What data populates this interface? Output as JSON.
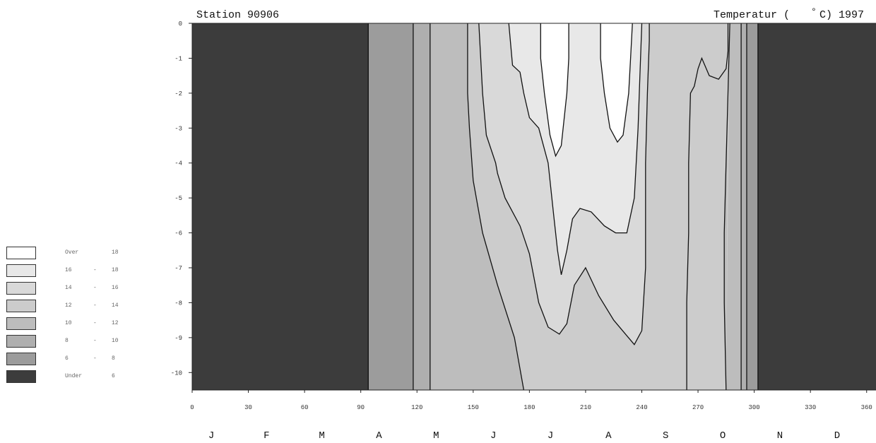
{
  "chart_data": {
    "type": "heatmap",
    "subtype": "filled-contour",
    "title_left": "Station 90906",
    "title_right": "Temperatur (°C) 1997",
    "title_right_parts": [
      "Temperatur (",
      "°",
      "C) 1997"
    ],
    "xlabel": "",
    "ylabel": "",
    "x_range": [
      0,
      365
    ],
    "y_range": [
      -10.5,
      0
    ],
    "x_ticks": [
      0,
      30,
      60,
      90,
      120,
      150,
      180,
      210,
      240,
      270,
      300,
      330,
      360
    ],
    "y_ticks": [
      0,
      -1,
      -2,
      -3,
      -4,
      -5,
      -6,
      -7,
      -8,
      -9,
      -10
    ],
    "months": [
      "J",
      "F",
      "M",
      "A",
      "M",
      "J",
      "J",
      "A",
      "S",
      "O",
      "N",
      "D"
    ],
    "ice_covered_days": [
      [
        0,
        94
      ],
      [
        302,
        365
      ]
    ],
    "contours": [
      {
        "level": 6,
        "points": [
          [
            94,
            0
          ],
          [
            94,
            -10.5
          ]
        ]
      },
      {
        "level": 6,
        "points": [
          [
            302,
            0
          ],
          [
            302,
            -10.5
          ]
        ]
      },
      {
        "level": 8,
        "points": [
          [
            118,
            0
          ],
          [
            118,
            -10.5
          ]
        ]
      },
      {
        "level": 8,
        "points": [
          [
            296,
            0
          ],
          [
            296,
            -10.5
          ]
        ]
      },
      {
        "level": 10,
        "points": [
          [
            127,
            0
          ],
          [
            127,
            -10.5
          ]
        ]
      },
      {
        "level": 10,
        "points": [
          [
            293,
            0
          ],
          [
            293,
            -10.5
          ]
        ]
      },
      {
        "level": 12,
        "points": [
          [
            147,
            0
          ],
          [
            147,
            -2
          ],
          [
            148,
            -3
          ],
          [
            150,
            -4.5
          ],
          [
            155,
            -6
          ],
          [
            163,
            -7.5
          ],
          [
            172,
            -9
          ],
          [
            177,
            -10.5
          ]
        ]
      },
      {
        "level": 12,
        "points": [
          [
            287,
            0
          ],
          [
            286,
            -2
          ],
          [
            285,
            -4
          ],
          [
            284,
            -6
          ],
          [
            284,
            -8
          ],
          [
            285,
            -10.5
          ]
        ]
      },
      {
        "level": 14,
        "points": [
          [
            153,
            0
          ],
          [
            155,
            -2
          ],
          [
            157,
            -3.2
          ],
          [
            162,
            -4
          ],
          [
            163,
            -4.3
          ],
          [
            167,
            -5
          ],
          [
            175,
            -5.8
          ],
          [
            180,
            -6.6
          ],
          [
            185,
            -8
          ],
          [
            190,
            -8.7
          ],
          [
            196,
            -8.9
          ],
          [
            200,
            -8.6
          ],
          [
            204,
            -7.5
          ],
          [
            210,
            -7
          ],
          [
            217,
            -7.8
          ],
          [
            225,
            -8.5
          ],
          [
            236,
            -9.2
          ],
          [
            240,
            -8.8
          ],
          [
            242,
            -7
          ],
          [
            242,
            -4
          ],
          [
            243,
            -2
          ],
          [
            244,
            -0.5
          ],
          [
            244,
            0
          ]
        ]
      },
      {
        "level": 14,
        "points": [
          [
            264,
            -10.5
          ],
          [
            264,
            -8
          ],
          [
            265,
            -6
          ],
          [
            265,
            -4
          ],
          [
            266,
            -2
          ],
          [
            268,
            -1.8
          ],
          [
            270,
            -1.3
          ],
          [
            272,
            -1
          ],
          [
            276,
            -1.5
          ],
          [
            281,
            -1.6
          ],
          [
            285,
            -1.3
          ],
          [
            286,
            -0.8
          ],
          [
            286,
            0
          ]
        ]
      },
      {
        "level": 16,
        "points": [
          [
            169,
            0
          ],
          [
            171,
            -1.2
          ],
          [
            175,
            -1.4
          ],
          [
            177,
            -2
          ],
          [
            180,
            -2.7
          ],
          [
            185,
            -3
          ],
          [
            190,
            -4
          ],
          [
            193,
            -5.5
          ],
          [
            195,
            -6.5
          ],
          [
            197,
            -7.2
          ],
          [
            200,
            -6.5
          ],
          [
            203,
            -5.6
          ],
          [
            207,
            -5.3
          ],
          [
            213,
            -5.4
          ],
          [
            220,
            -5.8
          ],
          [
            226,
            -6
          ],
          [
            232,
            -6
          ],
          [
            236,
            -5
          ],
          [
            238,
            -3
          ],
          [
            239,
            -1.5
          ],
          [
            240,
            0
          ]
        ]
      },
      {
        "level": 18,
        "points": [
          [
            186,
            0
          ],
          [
            186,
            -1
          ],
          [
            188,
            -2
          ],
          [
            191,
            -3.2
          ],
          [
            194,
            -3.8
          ],
          [
            197,
            -3.5
          ],
          [
            200,
            -2
          ],
          [
            201,
            -1
          ],
          [
            201,
            0
          ]
        ]
      },
      {
        "level": 18,
        "points": [
          [
            218,
            0
          ],
          [
            218,
            -1
          ],
          [
            220,
            -2
          ],
          [
            223,
            -3
          ],
          [
            227,
            -3.4
          ],
          [
            230,
            -3.2
          ],
          [
            233,
            -2
          ],
          [
            234,
            -1
          ],
          [
            235,
            0
          ]
        ]
      }
    ]
  },
  "legend": {
    "rows": [
      {
        "low": "Over",
        "high": "18",
        "color": "#ffffff"
      },
      {
        "low": "16",
        "high": "18",
        "color": "#e8e8e8"
      },
      {
        "low": "14",
        "high": "16",
        "color": "#d9d9d9"
      },
      {
        "low": "12",
        "high": "14",
        "color": "#cccccc"
      },
      {
        "low": "10",
        "high": "12",
        "color": "#bdbdbd"
      },
      {
        "low": "8",
        "high": "10",
        "color": "#afafaf"
      },
      {
        "low": "6",
        "high": "8",
        "color": "#9c9c9c"
      },
      {
        "low": "Under",
        "high": "6",
        "color": "#3c3c3c"
      }
    ],
    "dash": "-"
  }
}
